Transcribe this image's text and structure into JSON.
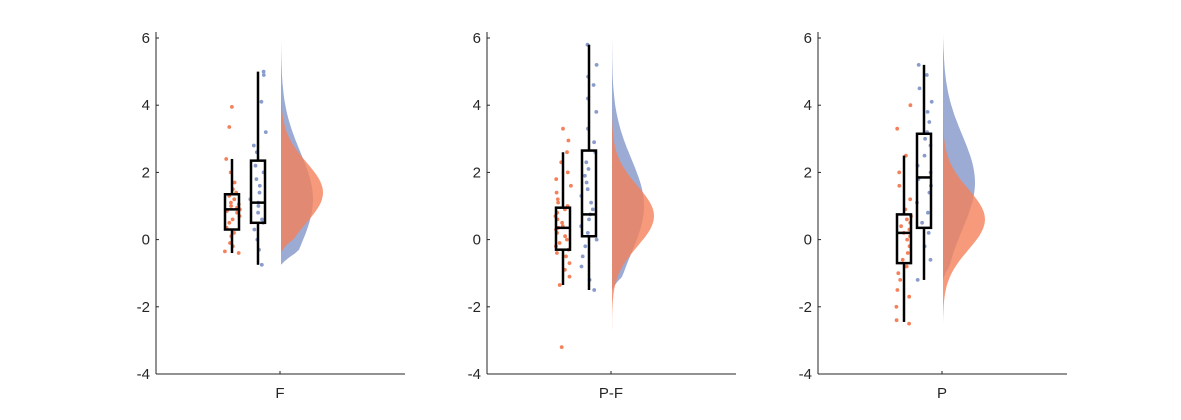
{
  "chart_data": [
    {
      "type": "raincloud",
      "xlabel": "F",
      "ylim": [
        -4,
        6
      ],
      "yticks": [
        -4,
        -2,
        0,
        2,
        4,
        6
      ],
      "series": [
        {
          "color": "#f4815a",
          "box": {
            "whisker_low": -0.4,
            "q1": 0.3,
            "median": 0.9,
            "q3": 1.35,
            "whisker_high": 2.4
          },
          "cloud": {
            "bottom": -0.4,
            "top": 4.9,
            "peak": 1.4
          },
          "points": [
            -0.4,
            -0.35,
            -0.2,
            -0.1,
            0.1,
            0.2,
            0.35,
            0.5,
            0.6,
            0.7,
            0.8,
            0.85,
            0.9,
            0.95,
            1.0,
            1.05,
            1.1,
            1.2,
            1.3,
            1.4,
            1.5,
            1.7,
            2.0,
            2.4,
            3.35,
            3.95
          ]
        },
        {
          "color": "#8a9ccc",
          "box": {
            "whisker_low": -0.75,
            "q1": 0.5,
            "median": 1.1,
            "q3": 2.35,
            "whisker_high": 5.0
          },
          "cloud": {
            "bottom": -0.75,
            "top": 6.0,
            "peak": 1.2
          },
          "points": [
            -0.75,
            -0.3,
            0.0,
            0.3,
            0.5,
            0.6,
            0.8,
            1.0,
            1.1,
            1.2,
            1.4,
            1.6,
            1.8,
            2.0,
            2.2,
            2.6,
            2.8,
            3.2,
            4.1,
            4.9,
            5.0
          ]
        }
      ]
    },
    {
      "type": "raincloud",
      "xlabel": "P-F",
      "ylim": [
        -4,
        6
      ],
      "yticks": [
        -4,
        -2,
        0,
        2,
        4,
        6
      ],
      "series": [
        {
          "color": "#f4815a",
          "box": {
            "whisker_low": -1.35,
            "q1": -0.3,
            "median": 0.35,
            "q3": 0.95,
            "whisker_high": 2.6
          },
          "cloud": {
            "bottom": -3.2,
            "top": 4.1,
            "peak": 0.7
          },
          "points": [
            -3.2,
            -1.35,
            -1.1,
            -0.9,
            -0.7,
            -0.5,
            -0.4,
            -0.3,
            -0.2,
            -0.1,
            0.0,
            0.1,
            0.2,
            0.3,
            0.35,
            0.4,
            0.5,
            0.6,
            0.7,
            0.8,
            0.9,
            1.0,
            1.1,
            1.2,
            1.4,
            1.6,
            1.8,
            2.0,
            2.3,
            2.6,
            2.95,
            3.3
          ]
        },
        {
          "color": "#8a9ccc",
          "box": {
            "whisker_low": -1.5,
            "q1": 0.1,
            "median": 0.75,
            "q3": 2.65,
            "whisker_high": 5.8
          },
          "cloud": {
            "bottom": -1.5,
            "top": 6.2,
            "peak": 1.0
          },
          "points": [
            -1.5,
            -1.2,
            -0.8,
            -0.5,
            -0.2,
            0.0,
            0.2,
            0.4,
            0.6,
            0.75,
            0.9,
            1.1,
            1.3,
            1.5,
            1.7,
            1.9,
            2.1,
            2.3,
            2.6,
            2.9,
            3.3,
            3.8,
            4.2,
            4.6,
            4.85,
            5.2,
            5.8
          ]
        }
      ]
    },
    {
      "type": "raincloud",
      "xlabel": "P",
      "ylim": [
        -4,
        6
      ],
      "yticks": [
        -4,
        -2,
        0,
        2,
        4,
        6
      ],
      "series": [
        {
          "color": "#f4815a",
          "box": {
            "whisker_low": -2.45,
            "q1": -0.7,
            "median": 0.2,
            "q3": 0.75,
            "whisker_high": 2.5
          },
          "cloud": {
            "bottom": -2.5,
            "top": 4.9,
            "peak": 0.6
          },
          "points": [
            -2.5,
            -2.4,
            -2.0,
            -1.7,
            -1.5,
            -1.2,
            -1.0,
            -0.8,
            -0.6,
            -0.4,
            -0.2,
            0.0,
            0.1,
            0.2,
            0.3,
            0.4,
            0.5,
            0.6,
            0.7,
            0.9,
            1.2,
            1.6,
            2.0,
            2.5,
            3.3,
            4.0
          ]
        },
        {
          "color": "#8a9ccc",
          "box": {
            "whisker_low": -1.2,
            "q1": 0.35,
            "median": 1.85,
            "q3": 3.15,
            "whisker_high": 5.2
          },
          "cloud": {
            "bottom": -1.2,
            "top": 6.2,
            "peak": 1.7
          },
          "points": [
            -1.2,
            -0.6,
            -0.2,
            0.2,
            0.5,
            0.8,
            1.1,
            1.4,
            1.6,
            1.8,
            2.0,
            2.2,
            2.5,
            2.8,
            3.0,
            3.2,
            3.5,
            3.8,
            4.1,
            4.5,
            4.9,
            5.2
          ]
        }
      ]
    }
  ]
}
